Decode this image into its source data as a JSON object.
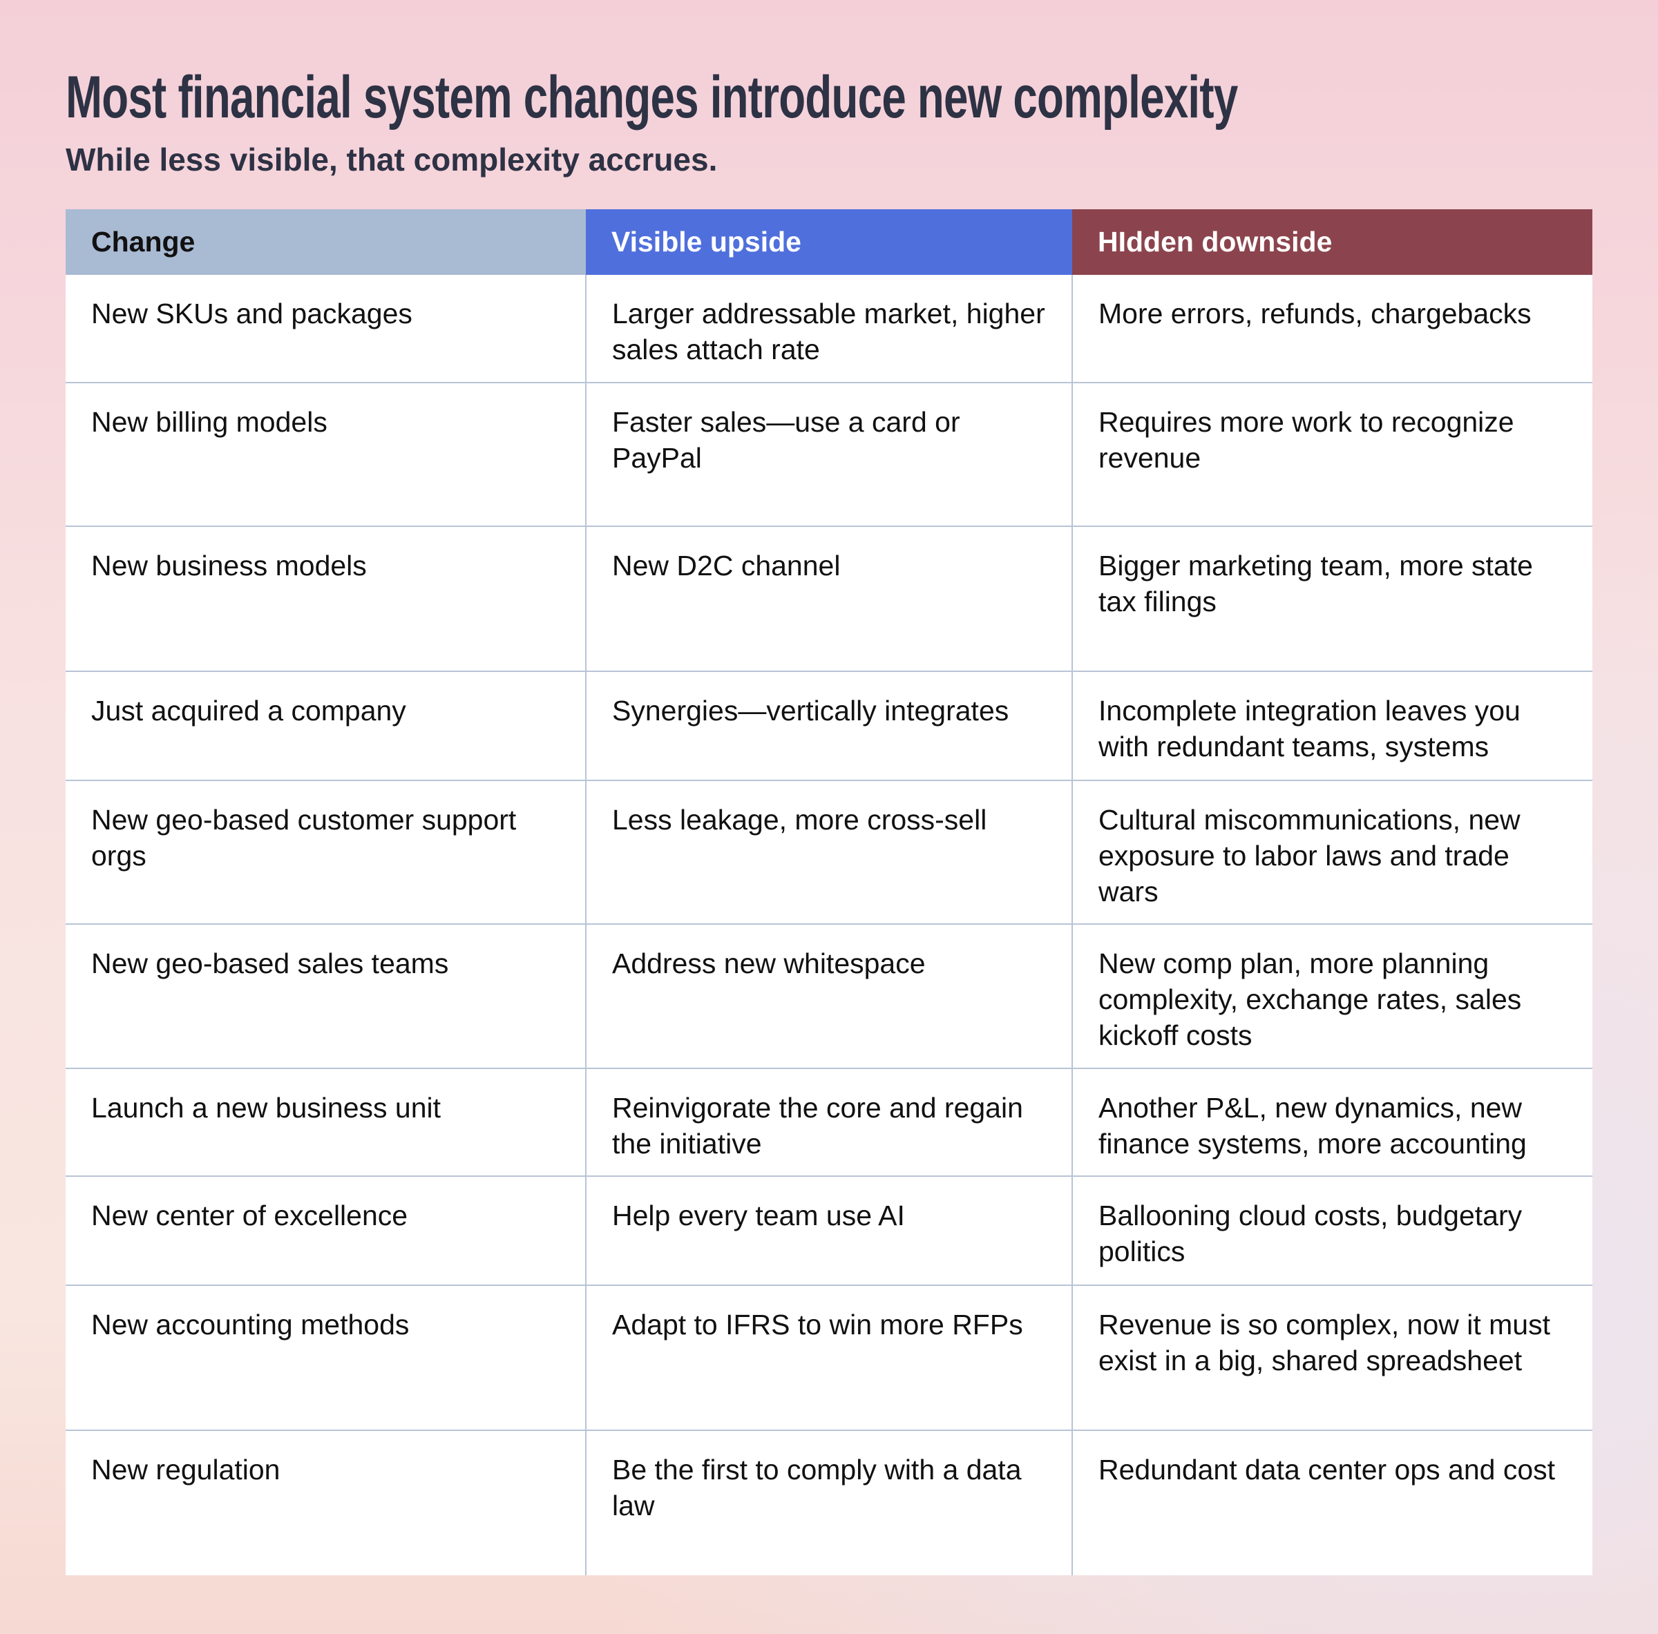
{
  "header": {
    "title": "Most financial system changes introduce new complexity",
    "subtitle": "While less visible, that complexity accrues."
  },
  "table": {
    "columns": [
      "Change",
      "Visible upside",
      "HIdden downside"
    ],
    "rows": [
      [
        "New SKUs and packages",
        "Larger addressable market, higher sales attach rate",
        "More errors, refunds, chargebacks"
      ],
      [
        "New billing models",
        "Faster sales—use a card or PayPal",
        "Requires more work to recognize revenue"
      ],
      [
        "New business models",
        "New D2C channel",
        "Bigger marketing team, more state tax filings"
      ],
      [
        "Just acquired a company",
        "Synergies—vertically integrates",
        "Incomplete integration leaves you with redundant teams, systems"
      ],
      [
        "New geo-based customer support orgs",
        "Less leakage, more cross-sell",
        "Cultural miscommunications, new exposure to labor laws and trade wars"
      ],
      [
        "New geo-based sales teams",
        "Address new whitespace",
        "New comp plan, more planning complexity, exchange rates, sales kickoff costs"
      ],
      [
        "Launch a new business unit",
        "Reinvigorate the core and regain the initiative",
        "Another P&L, new dynamics, new finance systems, more accounting"
      ],
      [
        "New center of excellence",
        "Help every team use AI",
        "Ballooning cloud costs, budgetary politics"
      ],
      [
        "New accounting methods",
        "Adapt to IFRS to win more RFPs",
        "Revenue is so complex, now it must exist in a big, shared spreadsheet"
      ],
      [
        "New regulation",
        "Be the first to comply with a data law",
        "Redundant data center ops and cost"
      ]
    ]
  }
}
